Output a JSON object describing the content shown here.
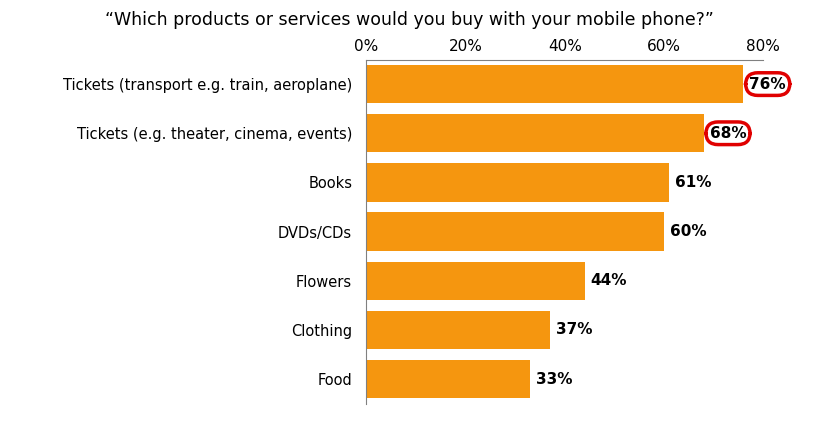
{
  "chart_data": {
    "type": "bar",
    "orientation": "horizontal",
    "title": "“Which products or services would you buy with your mobile phone?”",
    "categories": [
      "Tickets (transport e.g. train, aeroplane)",
      "Tickets (e.g. theater, cinema, events)",
      "Books",
      "DVDs/CDs",
      "Flowers",
      "Clothing",
      "Food"
    ],
    "values": [
      76,
      68,
      61,
      60,
      44,
      37,
      33
    ],
    "value_labels": [
      "76%",
      "68%",
      "61%",
      "60%",
      "44%",
      "37%",
      "33%"
    ],
    "data_labels": true,
    "color": "#f5960f",
    "xlim": [
      0,
      80
    ],
    "xticks": [
      {
        "value": 0,
        "label": "0%"
      },
      {
        "value": 20,
        "label": "20%"
      },
      {
        "value": 40,
        "label": "40%"
      },
      {
        "value": 60,
        "label": "60%"
      },
      {
        "value": 80,
        "label": "80%"
      }
    ],
    "grid": false
  }
}
